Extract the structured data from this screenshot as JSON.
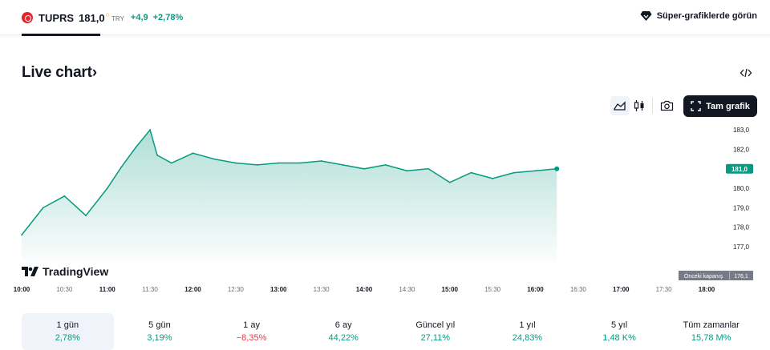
{
  "symbol": {
    "ticker": "TUPRS",
    "price": "181,0",
    "currency": "TRY",
    "change": "+4,9",
    "change_pct": "+2,78%"
  },
  "header": {
    "super_charts_label": "Süper-grafiklerde görün"
  },
  "section": {
    "title": "Live chart",
    "title_arrow": "›"
  },
  "toolbar": {
    "full_chart_label": "Tam grafik"
  },
  "brand": {
    "logo_text": "TradingView"
  },
  "colors": {
    "line": "#089981",
    "positive": "#089981",
    "negative": "#f23645",
    "dark": "#131722",
    "prev_close": "#787b86"
  },
  "chart_data": {
    "type": "area",
    "x": [
      "10:00",
      "10:15",
      "10:30",
      "10:45",
      "11:00",
      "11:10",
      "11:20",
      "11:30",
      "11:35",
      "11:45",
      "12:00",
      "12:15",
      "12:30",
      "12:45",
      "13:00",
      "13:15",
      "13:30",
      "13:45",
      "14:00",
      "14:15",
      "14:30",
      "14:45",
      "15:00",
      "15:15",
      "15:30",
      "15:45",
      "16:00",
      "16:15"
    ],
    "values": [
      177.6,
      179.0,
      179.6,
      178.6,
      180.0,
      181.1,
      182.1,
      183.0,
      181.7,
      181.3,
      181.8,
      181.5,
      181.3,
      181.2,
      181.3,
      181.3,
      181.4,
      181.2,
      181.0,
      181.2,
      180.9,
      181.0,
      180.3,
      180.8,
      180.5,
      180.8,
      180.9,
      181.0
    ],
    "current_value": "181,0",
    "previous_close": {
      "label": "Önceki kapanış",
      "value": "176,1"
    },
    "y_ticks": [
      "183,0",
      "182,0",
      "181,0",
      "180,0",
      "179,0",
      "178,0",
      "177,0"
    ],
    "y_tick_values": [
      183,
      182,
      181,
      180,
      179,
      178,
      177
    ],
    "x_ticks": [
      "10:00",
      "10:30",
      "11:00",
      "11:30",
      "12:00",
      "12:30",
      "13:00",
      "13:30",
      "14:00",
      "14:30",
      "15:00",
      "15:30",
      "16:00",
      "16:30",
      "17:00",
      "17:30",
      "18:00"
    ],
    "x_ticks_bold": [
      "10:00",
      "11:00",
      "12:00",
      "13:00",
      "14:00",
      "15:00",
      "16:00",
      "17:00",
      "18:00"
    ],
    "ylim": [
      176.3,
      183.5
    ],
    "xlim": [
      "10:00",
      "18:00"
    ],
    "grid": false
  },
  "periods": [
    {
      "label": "1 gün",
      "value": "2,78%",
      "dir": "pos",
      "active": true
    },
    {
      "label": "5 gün",
      "value": "3,19%",
      "dir": "pos"
    },
    {
      "label": "1 ay",
      "value": "−8,35%",
      "dir": "neg"
    },
    {
      "label": "6 ay",
      "value": "44,22%",
      "dir": "pos"
    },
    {
      "label": "Güncel yıl",
      "value": "27,11%",
      "dir": "pos"
    },
    {
      "label": "1 yıl",
      "value": "24,83%",
      "dir": "pos"
    },
    {
      "label": "5 yıl",
      "value": "1,48 K%",
      "dir": "pos"
    },
    {
      "label": "Tüm zamanlar",
      "value": "15,78 M%",
      "dir": "pos"
    }
  ]
}
